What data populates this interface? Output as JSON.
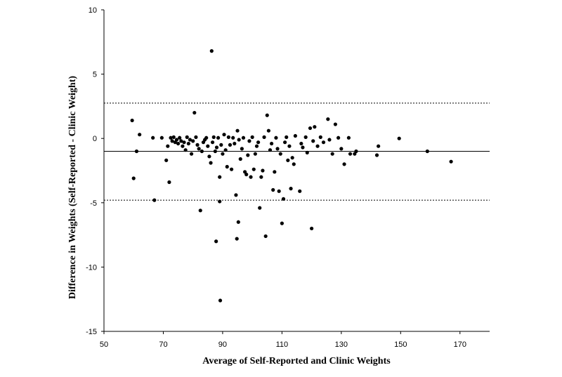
{
  "chart_data": {
    "type": "scatter",
    "xlabel": "Average of Self-Reported and Clinic Weights",
    "ylabel": "Difference in Weights (Self-Reported - Clinic Weight)",
    "xlim": [
      50,
      180
    ],
    "ylim": [
      -15,
      10
    ],
    "xticks": [
      50,
      70,
      90,
      110,
      130,
      150,
      170
    ],
    "yticks": [
      10,
      5,
      0,
      -5,
      -10,
      -15
    ],
    "grid": false,
    "reference_lines": [
      {
        "name": "mean difference",
        "y": -1.0,
        "style": "solid"
      },
      {
        "name": "upper limit of agreement",
        "y": 2.75,
        "style": "dashed"
      },
      {
        "name": "lower limit of agreement",
        "y": -4.8,
        "style": "dashed"
      }
    ],
    "points": [
      [
        59.5,
        1.4
      ],
      [
        60,
        -3.1
      ],
      [
        61,
        -1.0
      ],
      [
        62,
        0.3
      ],
      [
        66.5,
        0.05
      ],
      [
        67,
        -4.8
      ],
      [
        69.5,
        0.05
      ],
      [
        71,
        -1.7
      ],
      [
        71.5,
        -0.6
      ],
      [
        72,
        -3.4
      ],
      [
        72.5,
        0.05
      ],
      [
        73,
        -0.2
      ],
      [
        73.5,
        0.1
      ],
      [
        74,
        -0.3
      ],
      [
        74.5,
        -0.1
      ],
      [
        75,
        -0.4
      ],
      [
        75.5,
        0.05
      ],
      [
        76,
        -0.2
      ],
      [
        76.5,
        -0.6
      ],
      [
        77,
        -0.3
      ],
      [
        77.5,
        -0.9
      ],
      [
        78,
        0.1
      ],
      [
        78.5,
        -0.4
      ],
      [
        79,
        -0.1
      ],
      [
        79.5,
        -1.2
      ],
      [
        80,
        -0.2
      ],
      [
        80.5,
        2.0
      ],
      [
        81,
        0.1
      ],
      [
        81.5,
        -0.5
      ],
      [
        82,
        -0.8
      ],
      [
        82.5,
        -5.6
      ],
      [
        83,
        -1.0
      ],
      [
        83.5,
        -0.3
      ],
      [
        84,
        -0.1
      ],
      [
        84.5,
        0.05
      ],
      [
        85,
        -0.6
      ],
      [
        85.5,
        -1.4
      ],
      [
        86,
        -1.9
      ],
      [
        86.3,
        6.8
      ],
      [
        86.6,
        -0.3
      ],
      [
        87,
        0.1
      ],
      [
        87.5,
        -1.0
      ],
      [
        87.8,
        -8.0
      ],
      [
        88,
        -0.7
      ],
      [
        88.5,
        0.05
      ],
      [
        89,
        -3.0
      ],
      [
        89,
        -4.9
      ],
      [
        89.2,
        -12.6
      ],
      [
        89.5,
        -0.5
      ],
      [
        90,
        -1.2
      ],
      [
        90.5,
        0.3
      ],
      [
        91,
        -0.9
      ],
      [
        91.5,
        -2.2
      ],
      [
        92,
        0.1
      ],
      [
        92.5,
        -0.5
      ],
      [
        93,
        -2.4
      ],
      [
        93.5,
        0.05
      ],
      [
        94,
        -0.4
      ],
      [
        94.5,
        -4.4
      ],
      [
        94.8,
        -7.8
      ],
      [
        95,
        0.6
      ],
      [
        95.3,
        -6.5
      ],
      [
        95.5,
        -0.1
      ],
      [
        96,
        -1.6
      ],
      [
        96.5,
        -0.8
      ],
      [
        97,
        0.05
      ],
      [
        97.5,
        -2.6
      ],
      [
        98,
        -2.8
      ],
      [
        98.5,
        -1.3
      ],
      [
        99,
        -0.2
      ],
      [
        99.5,
        -3.0
      ],
      [
        100,
        0.1
      ],
      [
        100.5,
        -2.4
      ],
      [
        101,
        -1.2
      ],
      [
        101.5,
        -0.6
      ],
      [
        102,
        -0.3
      ],
      [
        102.5,
        -5.4
      ],
      [
        103,
        -3.0
      ],
      [
        103.5,
        -2.5
      ],
      [
        104,
        0.1
      ],
      [
        104.5,
        -7.6
      ],
      [
        105,
        1.8
      ],
      [
        105.5,
        0.6
      ],
      [
        106,
        -0.9
      ],
      [
        106.5,
        -0.4
      ],
      [
        107,
        -4.0
      ],
      [
        107.5,
        -2.6
      ],
      [
        108,
        0.05
      ],
      [
        108.5,
        -0.8
      ],
      [
        109,
        -4.1
      ],
      [
        109.5,
        -1.2
      ],
      [
        110,
        -6.6
      ],
      [
        110.5,
        -4.7
      ],
      [
        111,
        -0.3
      ],
      [
        111.5,
        0.1
      ],
      [
        112,
        -1.7
      ],
      [
        112.5,
        -0.6
      ],
      [
        113,
        -3.9
      ],
      [
        113.5,
        -1.5
      ],
      [
        114,
        -2.0
      ],
      [
        114.5,
        0.2
      ],
      [
        116,
        -4.1
      ],
      [
        116.5,
        -0.4
      ],
      [
        117,
        -0.7
      ],
      [
        118,
        0.1
      ],
      [
        118.5,
        -1.1
      ],
      [
        119.5,
        0.8
      ],
      [
        120,
        -7.0
      ],
      [
        120.5,
        -0.2
      ],
      [
        121,
        0.9
      ],
      [
        122,
        -0.6
      ],
      [
        123,
        0.1
      ],
      [
        124,
        -0.3
      ],
      [
        125.5,
        1.5
      ],
      [
        126,
        -0.1
      ],
      [
        127,
        -1.2
      ],
      [
        128,
        1.1
      ],
      [
        129,
        0.05
      ],
      [
        130,
        -0.8
      ],
      [
        131,
        -2.0
      ],
      [
        132.5,
        0.05
      ],
      [
        133,
        -1.2
      ],
      [
        134.5,
        -1.2
      ],
      [
        135,
        -1.0
      ],
      [
        142,
        -1.3
      ],
      [
        142.5,
        -0.6
      ],
      [
        149.5,
        0.0
      ],
      [
        159,
        -1.0
      ],
      [
        167,
        -1.8
      ]
    ]
  }
}
